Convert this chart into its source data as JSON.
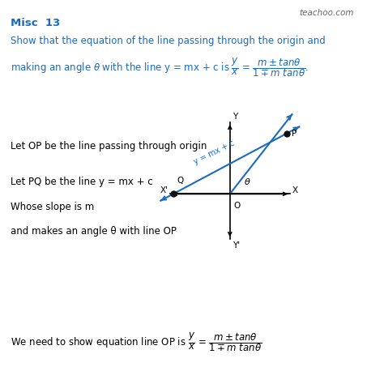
{
  "title": "Misc  13",
  "watermark": "teachoo.com",
  "bg_color": "#ffffff",
  "text_color": "#000000",
  "blue_color": "#1a6bbf",
  "figsize": [
    4.74,
    4.74
  ],
  "dpi": 100,
  "text_op": "Let OP be the line passing through origin",
  "text_pq": "Let PQ be the line y = mx + c",
  "text_slope": "Whose slope is m",
  "text_angle": "and makes an angle θ with line OP"
}
